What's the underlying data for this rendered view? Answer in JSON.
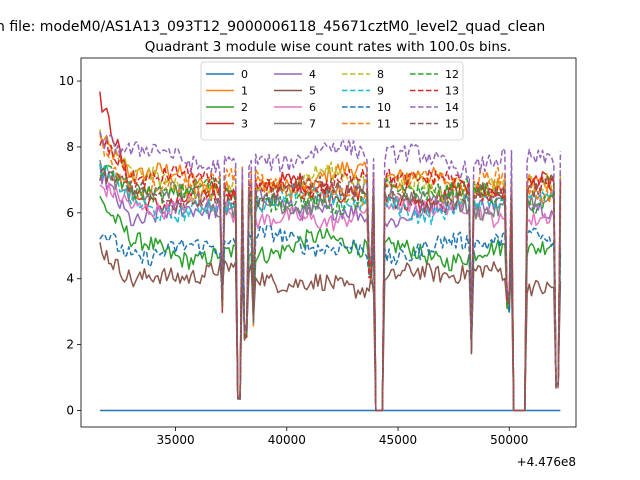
{
  "chart_data": {
    "type": "line",
    "suptitle": "n file: modeM0/AS1A13_093T12_9000006118_45671cztM0_level2_quad_clean",
    "title": "Quadrant 3 module wise count rates with 100.0s bins.",
    "xlabel": "",
    "ylabel": "",
    "x_offset_label": "+4.476e8",
    "xlim": [
      30750,
      53000
    ],
    "ylim": [
      -0.5,
      10.7
    ],
    "x_ticks": [
      35000,
      40000,
      45000,
      50000
    ],
    "x_tick_labels": [
      "35000",
      "40000",
      "45000",
      "50000"
    ],
    "y_ticks": [
      0,
      2,
      4,
      6,
      8,
      10
    ],
    "y_tick_labels": [
      "0",
      "2",
      "4",
      "6",
      "8",
      "10"
    ],
    "grid": false,
    "legend_position": "upper center",
    "legend_columns": 4,
    "x_start": 31600,
    "x_end": 52300,
    "bin_size_s": 100,
    "gaps": [
      [
        43950,
        44300
      ],
      [
        50150,
        50700
      ]
    ],
    "dips": [
      {
        "x": 37100,
        "to": 3.5
      },
      {
        "x": 37850,
        "to": 0.4
      },
      {
        "x": 38150,
        "to": 2.5
      },
      {
        "x": 38500,
        "to": 3.0
      },
      {
        "x": 43750,
        "to": 4.5
      },
      {
        "x": 48300,
        "to": 2.0
      },
      {
        "x": 49950,
        "to": 3.5
      },
      {
        "x": 52150,
        "to": 0.8
      }
    ],
    "series": [
      {
        "name": "0",
        "color": "#1f77b4",
        "dash": "solid",
        "level": 0.0,
        "start": 0.0
      },
      {
        "name": "1",
        "color": "#ff7f0e",
        "dash": "solid",
        "level": 7.0,
        "start": 8.1
      },
      {
        "name": "2",
        "color": "#2ca02c",
        "dash": "solid",
        "level": 4.9,
        "start": 6.3
      },
      {
        "name": "3",
        "color": "#d62728",
        "dash": "solid",
        "level": 6.6,
        "start": 9.3
      },
      {
        "name": "4",
        "color": "#9467bd",
        "dash": "solid",
        "level": 6.1,
        "start": 7.3
      },
      {
        "name": "5",
        "color": "#8c564b",
        "dash": "solid",
        "level": 4.0,
        "start": 5.4
      },
      {
        "name": "6",
        "color": "#e377c2",
        "dash": "solid",
        "level": 6.0,
        "start": 6.9
      },
      {
        "name": "7",
        "color": "#7f7f7f",
        "dash": "solid",
        "level": 6.4,
        "start": 7.2
      },
      {
        "name": "8",
        "color": "#bcbd22",
        "dash": "dashed",
        "level": 6.9,
        "start": 8.3
      },
      {
        "name": "9",
        "color": "#17becf",
        "dash": "dashed",
        "level": 6.3,
        "start": 7.2
      },
      {
        "name": "10",
        "color": "#1f77b4",
        "dash": "dashed",
        "level": 5.0,
        "start": 5.4
      },
      {
        "name": "11",
        "color": "#ff7f0e",
        "dash": "dashed",
        "level": 6.8,
        "start": 8.5
      },
      {
        "name": "12",
        "color": "#2ca02c",
        "dash": "dashed",
        "level": 6.5,
        "start": 7.6
      },
      {
        "name": "13",
        "color": "#d62728",
        "dash": "dashed",
        "level": 6.9,
        "start": 8.0
      },
      {
        "name": "14",
        "color": "#9467bd",
        "dash": "dashed",
        "level": 7.7,
        "start": 8.1
      },
      {
        "name": "15",
        "color": "#8c564b",
        "dash": "dashed",
        "level": 6.6,
        "start": 7.0
      }
    ]
  }
}
